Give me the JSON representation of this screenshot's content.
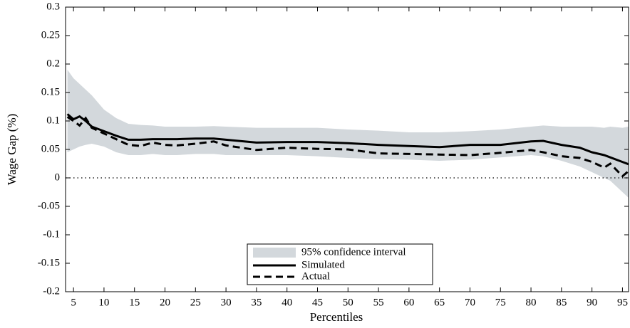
{
  "chart_data": {
    "type": "line",
    "xlabel": "Percentiles",
    "ylabel": "Wage Gap (%)",
    "x": [
      4,
      5,
      6,
      7,
      8,
      10,
      12,
      14,
      16,
      18,
      20,
      22,
      25,
      28,
      30,
      35,
      40,
      45,
      50,
      55,
      60,
      65,
      70,
      75,
      80,
      82,
      85,
      88,
      90,
      92,
      93,
      95,
      96
    ],
    "band": {
      "name": "95% confidence interval",
      "color": "#d3d8dc",
      "upper": [
        0.19,
        0.175,
        0.165,
        0.155,
        0.145,
        0.12,
        0.105,
        0.095,
        0.093,
        0.092,
        0.09,
        0.09,
        0.09,
        0.091,
        0.09,
        0.088,
        0.088,
        0.088,
        0.085,
        0.083,
        0.08,
        0.08,
        0.082,
        0.085,
        0.09,
        0.092,
        0.09,
        0.09,
        0.09,
        0.088,
        0.09,
        0.088,
        0.09
      ],
      "lower": [
        0.045,
        0.05,
        0.055,
        0.058,
        0.06,
        0.055,
        0.045,
        0.04,
        0.04,
        0.042,
        0.04,
        0.04,
        0.042,
        0.042,
        0.04,
        0.04,
        0.04,
        0.038,
        0.035,
        0.033,
        0.032,
        0.03,
        0.032,
        0.036,
        0.04,
        0.038,
        0.03,
        0.02,
        0.01,
        0.0,
        -0.005,
        -0.025,
        -0.035
      ]
    },
    "series": [
      {
        "name": "Simulated",
        "color": "#000000",
        "dash": false,
        "values": [
          0.112,
          0.103,
          0.108,
          0.1,
          0.09,
          0.082,
          0.074,
          0.067,
          0.067,
          0.068,
          0.068,
          0.068,
          0.069,
          0.069,
          0.067,
          0.062,
          0.063,
          0.063,
          0.061,
          0.058,
          0.056,
          0.054,
          0.058,
          0.058,
          0.064,
          0.065,
          0.058,
          0.053,
          0.045,
          0.04,
          0.036,
          0.028,
          0.024
        ]
      },
      {
        "name": "Actual",
        "color": "#000000",
        "dash": true,
        "values": [
          0.107,
          0.1,
          0.092,
          0.105,
          0.088,
          0.078,
          0.068,
          0.058,
          0.056,
          0.062,
          0.058,
          0.057,
          0.06,
          0.064,
          0.057,
          0.049,
          0.053,
          0.051,
          0.05,
          0.043,
          0.042,
          0.041,
          0.04,
          0.044,
          0.049,
          0.045,
          0.038,
          0.035,
          0.028,
          0.018,
          0.025,
          0.003,
          0.012
        ]
      }
    ],
    "reference_line": 0,
    "xlim": [
      3.7,
      96
    ],
    "xticks": [
      5,
      10,
      15,
      20,
      25,
      30,
      35,
      40,
      45,
      50,
      55,
      60,
      65,
      70,
      75,
      80,
      85,
      90,
      95
    ],
    "ylim": [
      -0.2,
      0.3
    ],
    "yticks": [
      -0.2,
      -0.15,
      -0.1,
      -0.05,
      0,
      0.05,
      0.1,
      0.15,
      0.2,
      0.25,
      0.3
    ],
    "legend": "lower center"
  }
}
